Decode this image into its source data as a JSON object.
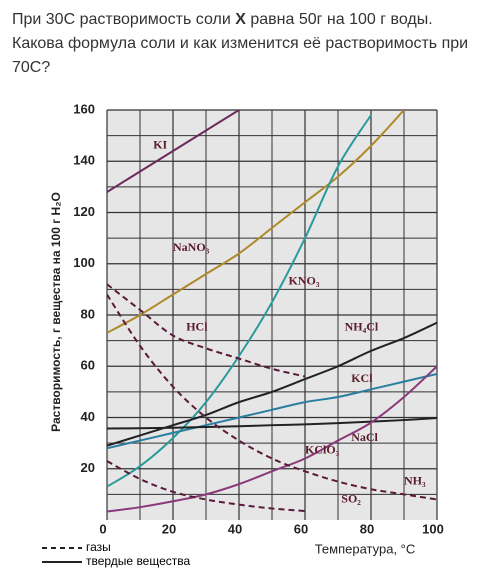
{
  "question": {
    "before": "При 30С растворимость соли ",
    "bold": "X",
    "after": " равна 50г на 100 г воды. Какова формула соли и как изменится её растворимость при 70С?"
  },
  "chart_data": {
    "type": "line",
    "y_label": "Растворимость, г вещества на 100 г H₂O",
    "x_label": "Температура, °C",
    "x": [
      0,
      10,
      20,
      30,
      40,
      50,
      60,
      70,
      80,
      90,
      100
    ],
    "xlim": [
      0,
      100
    ],
    "xticks": [
      0,
      20,
      40,
      60,
      80,
      100
    ],
    "ylim": [
      0,
      160
    ],
    "yticks": [
      20,
      40,
      60,
      80,
      100,
      120,
      140,
      160
    ],
    "grid": true,
    "line_style_legend": [
      "газы",
      "твердые вещества"
    ],
    "series": [
      {
        "name": "KI",
        "color": "#6b2a5a",
        "dashed": false,
        "values": [
          128,
          136,
          144,
          152,
          160,
          null,
          null,
          null,
          null,
          null,
          null
        ]
      },
      {
        "name": "NaNO₃",
        "color": "#b08a2a",
        "dashed": false,
        "values": [
          73,
          80,
          88,
          96,
          104,
          114,
          124,
          134,
          146,
          160,
          null
        ]
      },
      {
        "name": "KNO₃",
        "color": "#2a9a9a",
        "dashed": false,
        "values": [
          13,
          21,
          32,
          46,
          64,
          85,
          110,
          138,
          158,
          null,
          null
        ]
      },
      {
        "name": "HCl",
        "color": "#5a1a3a",
        "dashed": true,
        "values": [
          92,
          82,
          72,
          67,
          63,
          59,
          56,
          null,
          null,
          null,
          null
        ]
      },
      {
        "name": "NH₄Cl",
        "color": "#222222",
        "dashed": false,
        "values": [
          29,
          33,
          37,
          41,
          46,
          50,
          55,
          60,
          66,
          71,
          77
        ]
      },
      {
        "name": "KCl",
        "color": "#2a7fa0",
        "dashed": false,
        "values": [
          28,
          31,
          34,
          37,
          40,
          43,
          46,
          48,
          51,
          54,
          57
        ]
      },
      {
        "name": "NaCl",
        "color": "#222222",
        "dashed": false,
        "values": [
          35.7,
          35.8,
          36,
          36.3,
          36.6,
          37,
          37.3,
          37.8,
          38.4,
          39,
          39.8
        ]
      },
      {
        "name": "KClO₃",
        "color": "#8a3a7a",
        "dashed": false,
        "values": [
          3.3,
          5,
          7.3,
          10,
          14,
          19,
          24,
          31,
          38,
          48,
          60
        ]
      },
      {
        "name": "NH₃",
        "color": "#5a1a3a",
        "dashed": true,
        "values": [
          88,
          68,
          52,
          40,
          31,
          24,
          19,
          15,
          12,
          10,
          8
        ]
      },
      {
        "name": "SO₂",
        "color": "#5a1a3a",
        "dashed": true,
        "values": [
          23,
          16,
          11,
          8,
          6,
          4.5,
          3.5,
          null,
          null,
          null,
          null
        ]
      }
    ]
  }
}
